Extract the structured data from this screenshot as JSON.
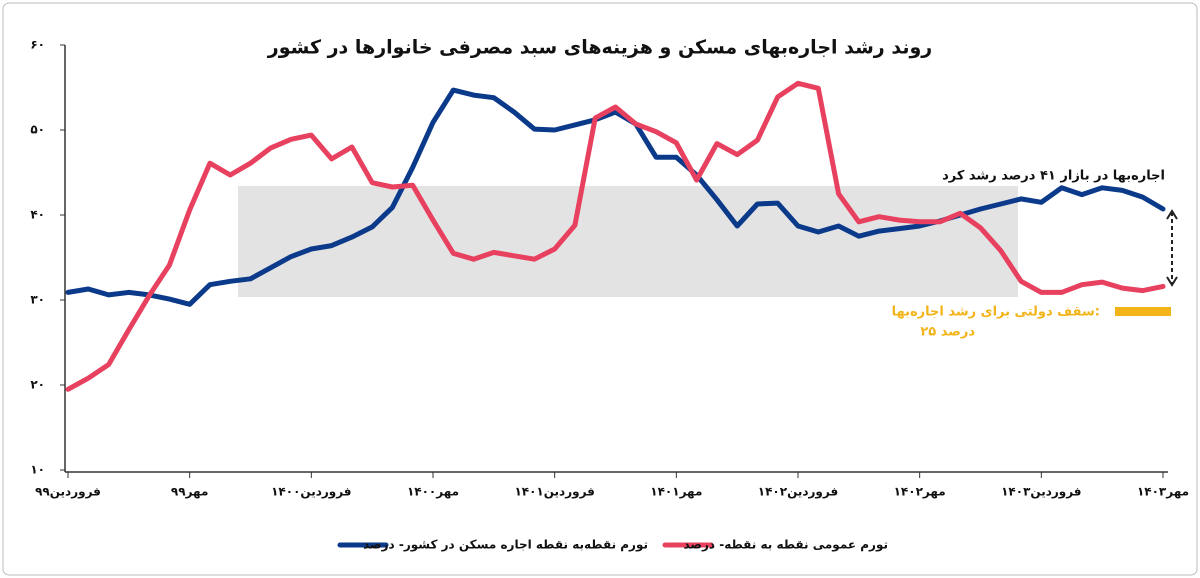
{
  "chart_data": {
    "type": "line",
    "title": "روند رشد اجاره‌بهای مسکن و هزینه‌های سبد مصرفی خانوارها در کشور",
    "categories": [
      "فروردین۹۹",
      null,
      null,
      null,
      null,
      null,
      "مهر۹۹",
      null,
      null,
      null,
      null,
      null,
      "فروردین۱۴۰۰",
      null,
      null,
      null,
      null,
      null,
      "مهر۱۴۰۰",
      null,
      null,
      null,
      null,
      null,
      "فروردین۱۴۰۱",
      null,
      null,
      null,
      null,
      null,
      "مهر۱۴۰۱",
      null,
      null,
      null,
      null,
      null,
      "فروردین۱۴۰۲",
      null,
      null,
      null,
      null,
      null,
      "مهر۱۴۰۲",
      null,
      null,
      null,
      null,
      null,
      "فروردین۱۴۰۳",
      null,
      null,
      null,
      null,
      null,
      "مهر۱۴۰۳"
    ],
    "series": [
      {
        "name": "تورم نقطه‌به نقطه اجاره مسکن در کشور- درصد",
        "color": "#0b3a8a",
        "values": [
          30.9,
          31.3,
          30.6,
          30.9,
          30.6,
          30.1,
          29.5,
          31.8,
          32.2,
          32.5,
          33.8,
          35.1,
          36.0,
          36.4,
          37.4,
          38.6,
          40.9,
          45.6,
          50.9,
          54.7,
          54.1,
          53.8,
          52.1,
          50.1,
          50.0,
          50.6,
          51.2,
          52.1,
          50.7,
          46.8,
          46.8,
          44.7,
          41.8,
          38.7,
          41.3,
          41.4,
          38.7,
          38.0,
          38.7,
          37.5,
          38.1,
          38.4,
          38.7,
          39.3,
          40.0,
          40.7,
          41.3,
          41.9,
          41.5,
          43.2,
          42.4,
          43.2,
          42.9,
          42.1,
          40.7
        ]
      },
      {
        "name": "تورم عمومی نقطه به نقطه- درصد",
        "color": "#e8405f",
        "values": [
          19.5,
          20.8,
          22.4,
          26.5,
          30.5,
          34.1,
          40.6,
          46.1,
          44.7,
          46.1,
          47.9,
          48.9,
          49.4,
          46.6,
          48.0,
          43.8,
          43.3,
          43.5,
          39.4,
          35.5,
          34.8,
          35.6,
          35.2,
          34.8,
          36.0,
          38.8,
          51.4,
          52.7,
          50.7,
          49.8,
          48.5,
          44.1,
          48.4,
          47.1,
          48.8,
          53.9,
          55.5,
          54.9,
          42.5,
          39.2,
          39.8,
          39.4,
          39.2,
          39.2,
          40.2,
          38.5,
          35.8,
          32.2,
          30.9,
          30.9,
          31.8,
          32.1,
          31.4,
          31.1,
          31.6
        ]
      }
    ],
    "ylim": [
      10,
      60
    ],
    "yticks": [
      {
        "value": 10,
        "label": "۱۰"
      },
      {
        "value": 20,
        "label": "۲۰"
      },
      {
        "value": 30,
        "label": "۳۰"
      },
      {
        "value": 40,
        "label": "۴۰"
      },
      {
        "value": 50,
        "label": "۵۰"
      },
      {
        "value": 60,
        "label": "۶۰"
      }
    ],
    "annotations": [
      "اجاره‌بها در بازار ۴۱ درصد رشد کرد",
      "سقف دولتی برای رشد اجاره‌بها:",
      "۲۵ درصد"
    ],
    "annotation_color": "#f2b418"
  }
}
